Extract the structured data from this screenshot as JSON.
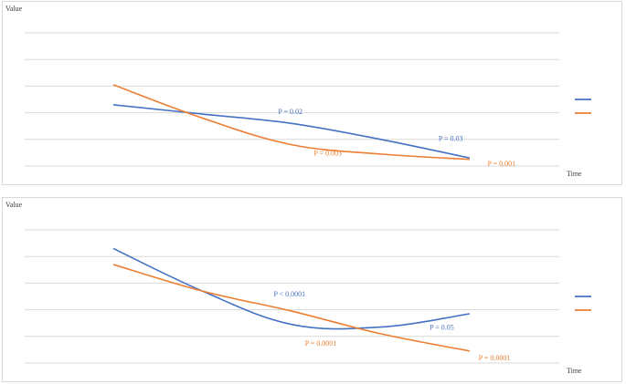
{
  "chart_data": [
    {
      "type": "line",
      "ylabel": "Value",
      "xlabel": "Time",
      "x": [
        0,
        1,
        2,
        3,
        4
      ],
      "ylim": [
        0,
        5
      ],
      "grid": true,
      "legend": "right",
      "series": [
        {
          "color": "#4472c4",
          "values": [
            2.3,
            1.95,
            1.6,
            1.0,
            0.3
          ]
        },
        {
          "color": "#ed7d31",
          "values": [
            3.05,
            1.8,
            0.8,
            0.45,
            0.25
          ]
        }
      ],
      "annotations": [
        {
          "text": "P = 0.02",
          "color": "#4472c4",
          "x": 1.85,
          "y": 1.95
        },
        {
          "text": "P = 0.03",
          "color": "#4472c4",
          "x": 3.65,
          "y": 0.95
        },
        {
          "text": "P = 0.003",
          "color": "#ed7d31",
          "x": 2.25,
          "y": 0.4
        },
        {
          "text": "P = 0.001",
          "color": "#ed7d31",
          "x": 4.2,
          "y": 0.0
        }
      ]
    },
    {
      "type": "line",
      "ylabel": "Value",
      "xlabel": "Time",
      "x": [
        0,
        1,
        2,
        3,
        4
      ],
      "ylim": [
        0,
        5
      ],
      "grid": true,
      "legend": "right",
      "series": [
        {
          "color": "#4472c4",
          "values": [
            4.3,
            2.7,
            1.45,
            1.35,
            1.85
          ]
        },
        {
          "color": "#ed7d31",
          "values": [
            3.7,
            2.7,
            1.95,
            1.1,
            0.45
          ]
        }
      ],
      "annotations": [
        {
          "text": "P < 0.0001",
          "color": "#4472c4",
          "x": 1.8,
          "y": 2.5
        },
        {
          "text": "P = 0.05",
          "color": "#4472c4",
          "x": 3.55,
          "y": 1.25
        },
        {
          "text": "P = 0.0001",
          "color": "#ed7d31",
          "x": 2.15,
          "y": 0.65
        },
        {
          "text": "P = 0.0001",
          "color": "#ed7d31",
          "x": 4.1,
          "y": 0.1
        }
      ]
    }
  ]
}
